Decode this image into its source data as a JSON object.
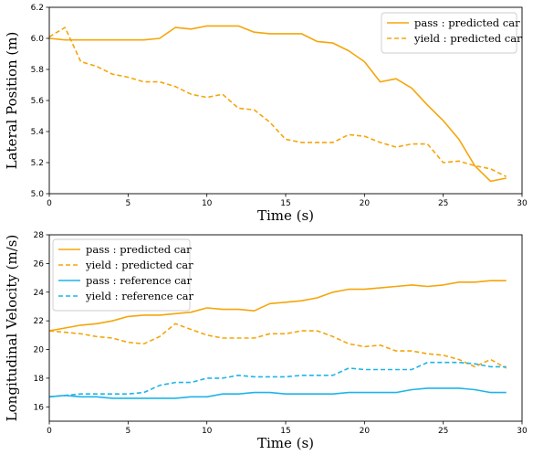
{
  "colors": {
    "orange": "#F5A50B",
    "blue": "#1FB4E8"
  },
  "chart_data": [
    {
      "type": "line",
      "xlabel": "Time (s)",
      "ylabel": "Lateral Position (m)",
      "xlim": [
        0,
        30
      ],
      "ylim": [
        5.0,
        6.2
      ],
      "xticks": [
        "0",
        "5",
        "10",
        "15",
        "20",
        "25",
        "30"
      ],
      "yticks": [
        "5.0",
        "5.2",
        "5.4",
        "5.6",
        "5.8",
        "6.0",
        "6.2"
      ],
      "grid": false,
      "legend_position": "top-right",
      "x": [
        0,
        1,
        2,
        3,
        4,
        5,
        6,
        7,
        8,
        9,
        10,
        11,
        12,
        13,
        14,
        15,
        16,
        17,
        18,
        19,
        20,
        21,
        22,
        23,
        24,
        25,
        26,
        27,
        28,
        29
      ],
      "series": [
        {
          "name": "pass : predicted car",
          "style": "solid",
          "color": "orange",
          "values": [
            6.0,
            5.99,
            5.99,
            5.99,
            5.99,
            5.99,
            5.99,
            6.0,
            6.07,
            6.06,
            6.08,
            6.08,
            6.08,
            6.04,
            6.03,
            6.03,
            6.03,
            5.98,
            5.97,
            5.92,
            5.85,
            5.72,
            5.74,
            5.68,
            5.57,
            5.47,
            5.35,
            5.18,
            5.08,
            5.1
          ]
        },
        {
          "name": "yield : predicted car",
          "style": "dashed",
          "color": "orange",
          "values": [
            6.01,
            6.07,
            5.85,
            5.82,
            5.77,
            5.75,
            5.72,
            5.72,
            5.69,
            5.64,
            5.62,
            5.64,
            5.55,
            5.54,
            5.46,
            5.35,
            5.33,
            5.33,
            5.33,
            5.38,
            5.37,
            5.33,
            5.3,
            5.32,
            5.32,
            5.2,
            5.21,
            5.18,
            5.16,
            5.11
          ]
        }
      ]
    },
    {
      "type": "line",
      "xlabel": "Time (s)",
      "ylabel": "Longitudinal Velocity (m/s)",
      "xlim": [
        0,
        30
      ],
      "ylim": [
        15,
        28
      ],
      "xticks": [
        "0",
        "5",
        "10",
        "15",
        "20",
        "25",
        "30"
      ],
      "yticks": [
        "16",
        "18",
        "20",
        "22",
        "24",
        "26",
        "28"
      ],
      "grid": false,
      "legend_position": "top-left",
      "x": [
        0,
        1,
        2,
        3,
        4,
        5,
        6,
        7,
        8,
        9,
        10,
        11,
        12,
        13,
        14,
        15,
        16,
        17,
        18,
        19,
        20,
        21,
        22,
        23,
        24,
        25,
        26,
        27,
        28,
        29
      ],
      "series": [
        {
          "name": "pass : predicted car",
          "style": "solid",
          "color": "orange",
          "values": [
            21.3,
            21.5,
            21.7,
            21.8,
            22.0,
            22.3,
            22.4,
            22.4,
            22.5,
            22.6,
            22.9,
            22.8,
            22.8,
            22.7,
            23.2,
            23.3,
            23.4,
            23.6,
            24.0,
            24.2,
            24.2,
            24.3,
            24.4,
            24.5,
            24.4,
            24.5,
            24.7,
            24.7,
            24.8,
            24.8
          ]
        },
        {
          "name": "yield : predicted car",
          "style": "dashed",
          "color": "orange",
          "values": [
            21.3,
            21.2,
            21.1,
            20.9,
            20.8,
            20.5,
            20.4,
            20.9,
            21.8,
            21.4,
            21.0,
            20.8,
            20.8,
            20.8,
            21.1,
            21.1,
            21.3,
            21.3,
            20.9,
            20.4,
            20.2,
            20.3,
            19.9,
            19.9,
            19.7,
            19.6,
            19.3,
            18.8,
            19.3,
            18.7
          ]
        },
        {
          "name": "pass : reference car",
          "style": "solid",
          "color": "blue",
          "values": [
            16.7,
            16.8,
            16.7,
            16.7,
            16.6,
            16.6,
            16.6,
            16.6,
            16.6,
            16.7,
            16.7,
            16.9,
            16.9,
            17.0,
            17.0,
            16.9,
            16.9,
            16.9,
            16.9,
            17.0,
            17.0,
            17.0,
            17.0,
            17.2,
            17.3,
            17.3,
            17.3,
            17.2,
            17.0,
            17.0
          ]
        },
        {
          "name": "yield : reference car",
          "style": "dashed",
          "color": "blue",
          "values": [
            16.7,
            16.8,
            16.9,
            16.9,
            16.9,
            16.9,
            17.0,
            17.5,
            17.7,
            17.7,
            18.0,
            18.0,
            18.2,
            18.1,
            18.1,
            18.1,
            18.2,
            18.2,
            18.2,
            18.7,
            18.6,
            18.6,
            18.6,
            18.6,
            19.1,
            19.1,
            19.1,
            19.0,
            18.8,
            18.8
          ]
        }
      ]
    }
  ]
}
